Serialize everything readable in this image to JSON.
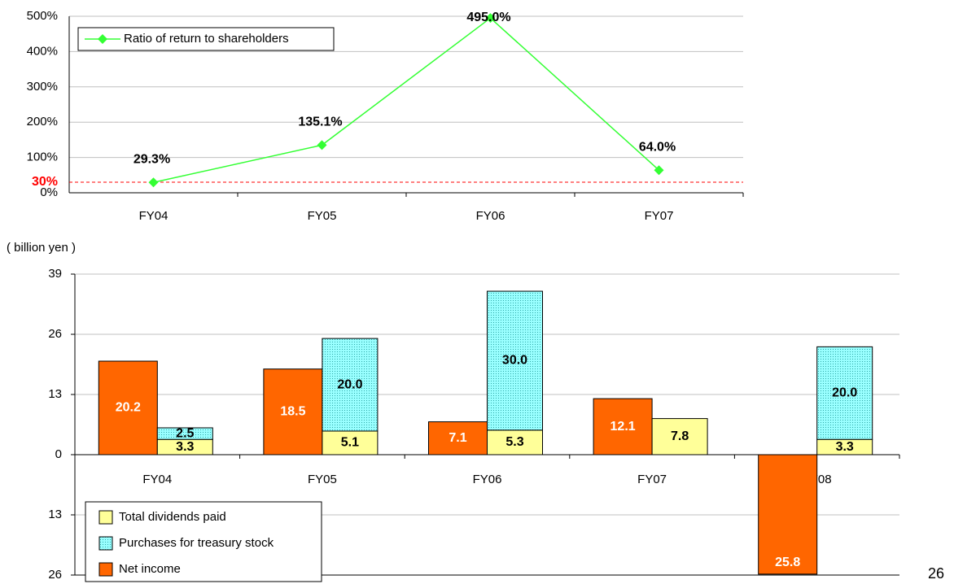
{
  "chart_data": [
    {
      "type": "line",
      "categories": [
        "FY04",
        "FY05",
        "FY06",
        "FY07"
      ],
      "series": [
        {
          "name": "Ratio of return to shareholders",
          "color": "#33ff33",
          "values": [
            29.3,
            135.1,
            495.0,
            64.0
          ],
          "value_labels": [
            "29.3%",
            "135.1%",
            "495.0%",
            "64.0%"
          ]
        }
      ],
      "ylim": [
        0,
        500
      ],
      "yticks": [
        {
          "value": 0,
          "label": "0%"
        },
        {
          "value": 100,
          "label": "100%"
        },
        {
          "value": 200,
          "label": "200%"
        },
        {
          "value": 300,
          "label": "300%"
        },
        {
          "value": 400,
          "label": "400%"
        },
        {
          "value": 500,
          "label": "500%"
        }
      ],
      "reference_line": {
        "value": 30,
        "label": "30%",
        "color": "#ff0000"
      },
      "grid": true,
      "legend": "upper left"
    },
    {
      "type": "bar",
      "y_label": "( billion yen )",
      "categories": [
        "FY04",
        "FY05",
        "FY06",
        "FY07",
        "FY08"
      ],
      "series": [
        {
          "name": "Total dividends paid",
          "color": "#ffff99",
          "values": [
            3.3,
            5.1,
            5.3,
            7.8,
            3.3
          ]
        },
        {
          "name": "Purchases for treasury stock",
          "color": "#66e6e6",
          "values": [
            2.5,
            20.0,
            30.0,
            null,
            20.0
          ],
          "value_labels": [
            "2.5",
            "20.0",
            "30.0",
            null,
            "20.0"
          ]
        },
        {
          "name": "Net income",
          "color": "#ff6600",
          "values": [
            20.2,
            18.5,
            7.1,
            12.1,
            -25.8
          ],
          "value_labels": [
            "20.2",
            "18.5",
            "7.1",
            "12.1",
            "25.8"
          ]
        }
      ],
      "ylim": [
        -26,
        39
      ],
      "yticks": [
        39,
        26,
        13,
        0,
        {
          "value": -13,
          "label": "13"
        },
        {
          "value": -26,
          "label": "26"
        }
      ],
      "grid": true,
      "legend": "lower left"
    }
  ],
  "page_number": "26"
}
